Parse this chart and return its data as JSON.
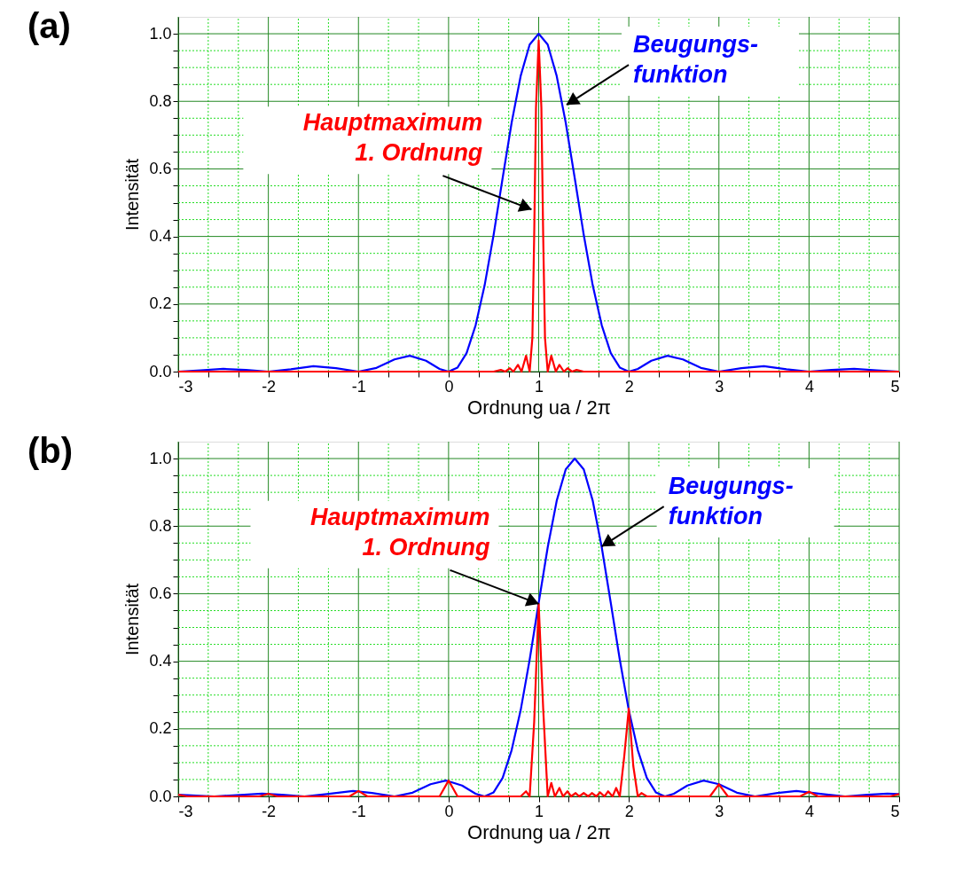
{
  "chart_data": [
    {
      "type": "line",
      "title": "(a)",
      "xlabel": "Ordnung ua / 2π",
      "ylabel": "Intensität",
      "xlim": [
        -3,
        5
      ],
      "ylim": [
        0,
        1.05
      ],
      "grid": true,
      "xticks": [
        -3,
        {
          "value": -2.667,
          "label": null
        },
        {
          "value": -2.333,
          "label": null
        },
        -2,
        {
          "value": -1.667,
          "label": null
        },
        {
          "value": -1.333,
          "label": null
        },
        -1,
        {
          "value": -0.667,
          "label": null
        },
        {
          "value": -0.333,
          "label": null
        },
        0,
        {
          "value": 0.333,
          "label": null
        },
        {
          "value": 0.667,
          "label": null
        },
        1,
        {
          "value": 1.333,
          "label": null
        },
        {
          "value": 1.667,
          "label": null
        },
        2,
        {
          "value": 2.333,
          "label": null
        },
        {
          "value": 2.667,
          "label": null
        },
        3,
        {
          "value": 3.333,
          "label": null
        },
        {
          "value": 3.667,
          "label": null
        },
        4,
        {
          "value": 4.333,
          "label": null
        },
        {
          "value": 4.667,
          "label": null
        },
        5
      ],
      "yticks": [
        {
          "value": 0,
          "label": "0.0"
        },
        {
          "value": 0.05,
          "label": null
        },
        {
          "value": 0.1,
          "label": null
        },
        {
          "value": 0.15,
          "label": null
        },
        {
          "value": 0.2,
          "label": "0.2"
        },
        {
          "value": 0.25,
          "label": null
        },
        {
          "value": 0.3,
          "label": null
        },
        {
          "value": 0.35,
          "label": null
        },
        {
          "value": 0.4,
          "label": "0.4"
        },
        {
          "value": 0.45,
          "label": null
        },
        {
          "value": 0.5,
          "label": null
        },
        {
          "value": 0.55,
          "label": null
        },
        {
          "value": 0.6,
          "label": "0.6"
        },
        {
          "value": 0.65,
          "label": null
        },
        {
          "value": 0.7,
          "label": null
        },
        {
          "value": 0.75,
          "label": null
        },
        {
          "value": 0.8,
          "label": "0.8"
        },
        {
          "value": 0.85,
          "label": null
        },
        {
          "value": 0.9,
          "label": null
        },
        {
          "value": 0.95,
          "label": null
        },
        {
          "value": 1.0,
          "label": "1.0"
        }
      ],
      "series": [
        {
          "color": "#0000ff",
          "x": [
            -3,
            -2.75,
            -2.5,
            -2.25,
            -2,
            -1.75,
            -1.5,
            -1.25,
            -1,
            -0.8,
            -0.6,
            -0.43,
            -0.25,
            -0.1,
            0,
            0.1,
            0.2,
            0.3,
            0.4,
            0.5,
            0.6,
            0.7,
            0.8,
            0.9,
            1,
            1.1,
            1.2,
            1.3,
            1.4,
            1.5,
            1.6,
            1.7,
            1.8,
            1.9,
            2,
            2.1,
            2.25,
            2.43,
            2.6,
            2.8,
            3,
            3.25,
            3.5,
            3.75,
            4,
            4.25,
            4.5,
            4.75,
            5
          ],
          "values": [
            0,
            0.004,
            0.008,
            0.005,
            0,
            0.007,
            0.016,
            0.01,
            0,
            0.011,
            0.036,
            0.047,
            0.032,
            0.008,
            0,
            0.012,
            0.055,
            0.137,
            0.255,
            0.405,
            0.573,
            0.737,
            0.875,
            0.968,
            1,
            0.968,
            0.875,
            0.737,
            0.573,
            0.405,
            0.255,
            0.137,
            0.055,
            0.012,
            0,
            0.008,
            0.032,
            0.047,
            0.036,
            0.011,
            0,
            0.01,
            0.016,
            0.007,
            0,
            0.005,
            0.008,
            0.004,
            0
          ]
        },
        {
          "color": "#ff0000",
          "x": [
            -3,
            0.5,
            0.58,
            0.63,
            0.68,
            0.72,
            0.77,
            0.81,
            0.86,
            0.9,
            0.93,
            0.95,
            0.97,
            1,
            1.03,
            1.05,
            1.07,
            1.1,
            1.14,
            1.19,
            1.23,
            1.28,
            1.32,
            1.37,
            1.42,
            1.5,
            5
          ],
          "values": [
            0,
            0,
            0.005,
            0,
            0.01,
            0,
            0.02,
            0,
            0.047,
            0,
            0.1,
            0.4,
            0.78,
            0.98,
            0.78,
            0.4,
            0.1,
            0,
            0.047,
            0,
            0.02,
            0,
            0.01,
            0,
            0.005,
            0,
            0
          ]
        }
      ],
      "annotations": [
        {
          "text": "Beugungs-\nfunktion",
          "x": 1.31,
          "y": 0.79
        },
        {
          "text": "Hauptmaximum\n1. Ordnung",
          "x": 0.92,
          "y": 0.48
        }
      ]
    },
    {
      "type": "line",
      "title": "(b)",
      "xlabel": "Ordnung ua / 2π",
      "ylabel": "Intensität",
      "xlim": [
        -3,
        5
      ],
      "ylim": [
        0,
        1.05
      ],
      "grid": true,
      "xticks": [
        -3,
        {
          "value": -2.667,
          "label": null
        },
        {
          "value": -2.333,
          "label": null
        },
        -2,
        {
          "value": -1.667,
          "label": null
        },
        {
          "value": -1.333,
          "label": null
        },
        -1,
        {
          "value": -0.667,
          "label": null
        },
        {
          "value": -0.333,
          "label": null
        },
        0,
        {
          "value": 0.333,
          "label": null
        },
        {
          "value": 0.667,
          "label": null
        },
        1,
        {
          "value": 1.333,
          "label": null
        },
        {
          "value": 1.667,
          "label": null
        },
        2,
        {
          "value": 2.333,
          "label": null
        },
        {
          "value": 2.667,
          "label": null
        },
        3,
        {
          "value": 3.333,
          "label": null
        },
        {
          "value": 3.667,
          "label": null
        },
        4,
        {
          "value": 4.333,
          "label": null
        },
        {
          "value": 4.667,
          "label": null
        },
        5
      ],
      "yticks": [
        {
          "value": 0,
          "label": "0.0"
        },
        {
          "value": 0.05,
          "label": null
        },
        {
          "value": 0.1,
          "label": null
        },
        {
          "value": 0.15,
          "label": null
        },
        {
          "value": 0.2,
          "label": "0.2"
        },
        {
          "value": 0.25,
          "label": null
        },
        {
          "value": 0.3,
          "label": null
        },
        {
          "value": 0.35,
          "label": null
        },
        {
          "value": 0.4,
          "label": "0.4"
        },
        {
          "value": 0.45,
          "label": null
        },
        {
          "value": 0.5,
          "label": null
        },
        {
          "value": 0.55,
          "label": null
        },
        {
          "value": 0.6,
          "label": "0.6"
        },
        {
          "value": 0.65,
          "label": null
        },
        {
          "value": 0.7,
          "label": null
        },
        {
          "value": 0.75,
          "label": null
        },
        {
          "value": 0.8,
          "label": "0.8"
        },
        {
          "value": 0.85,
          "label": null
        },
        {
          "value": 0.9,
          "label": null
        },
        {
          "value": 0.95,
          "label": null
        },
        {
          "value": 1.0,
          "label": "1.0"
        }
      ],
      "series": [
        {
          "color": "#0000ff",
          "x": [
            -3,
            -2.6,
            -2.35,
            -2.07,
            -1.85,
            -1.6,
            -1.35,
            -1.06,
            -0.85,
            -0.6,
            -0.4,
            -0.2,
            -0.03,
            0.15,
            0.3,
            0.4,
            0.5,
            0.6,
            0.7,
            0.8,
            0.9,
            1.0,
            1.1,
            1.2,
            1.3,
            1.4,
            1.5,
            1.6,
            1.7,
            1.8,
            1.9,
            2.0,
            2.1,
            2.2,
            2.3,
            2.4,
            2.5,
            2.65,
            2.83,
            3.0,
            3.2,
            3.4,
            3.65,
            3.86,
            4.15,
            4.4,
            4.65,
            4.87,
            5
          ],
          "values": [
            0.005,
            0,
            0.004,
            0.008,
            0.005,
            0,
            0.007,
            0.016,
            0.01,
            0,
            0.011,
            0.036,
            0.047,
            0.032,
            0.008,
            0,
            0.012,
            0.055,
            0.137,
            0.255,
            0.405,
            0.573,
            0.737,
            0.875,
            0.968,
            1,
            0.968,
            0.875,
            0.737,
            0.573,
            0.405,
            0.255,
            0.137,
            0.055,
            0.012,
            0,
            0.008,
            0.032,
            0.047,
            0.036,
            0.011,
            0,
            0.01,
            0.016,
            0.007,
            0,
            0.005,
            0.008,
            0.007
          ]
        },
        {
          "color": "#ff0000",
          "x": [
            -3,
            -2.9,
            -2.1,
            -2,
            -1.9,
            -1.1,
            -1,
            -0.9,
            -0.1,
            0,
            0.1,
            0.8,
            0.86,
            0.9,
            0.95,
            1,
            1.05,
            1.1,
            1.14,
            1.18,
            1.23,
            1.27,
            1.32,
            1.36,
            1.41,
            1.45,
            1.5,
            1.55,
            1.59,
            1.64,
            1.68,
            1.73,
            1.77,
            1.82,
            1.86,
            1.9,
            1.95,
            2,
            2.05,
            2.1,
            2.14,
            2.2,
            2.9,
            3,
            3.1,
            3.9,
            4,
            4.1,
            4.9,
            5
          ],
          "values": [
            0.005,
            0,
            0,
            0.008,
            0,
            0,
            0.016,
            0,
            0,
            0.047,
            0,
            0,
            0.015,
            0,
            0.22,
            0.57,
            0.26,
            0,
            0.04,
            0,
            0.025,
            0,
            0.015,
            0,
            0.01,
            0,
            0.01,
            0,
            0.01,
            0,
            0.012,
            0,
            0.015,
            0,
            0.025,
            0,
            0.12,
            0.26,
            0.09,
            0,
            0.01,
            0,
            0,
            0.036,
            0,
            0,
            0.014,
            0,
            0,
            0.007
          ]
        }
      ],
      "annotations": [
        {
          "text": "Beugungs-\nfunktion",
          "x": 1.7,
          "y": 0.74
        },
        {
          "text": "Hauptmaximum\n1. Ordnung",
          "x": 1,
          "y": 0.57
        }
      ]
    }
  ]
}
